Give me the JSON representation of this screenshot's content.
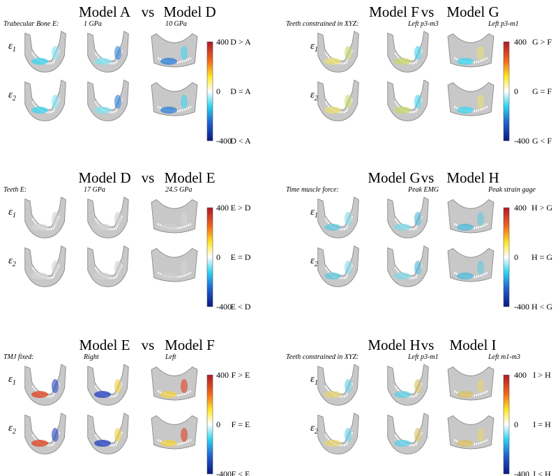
{
  "panels": [
    {
      "left_model": "Model A",
      "vs": "vs",
      "right_model": "Model D",
      "parameter": "Trabecular Bone E:",
      "left_value": "1 GPa",
      "right_value": "10 GPa",
      "rows": [
        {
          "symbol": "ε",
          "sub": "1"
        },
        {
          "symbol": "ε",
          "sub": "2"
        }
      ],
      "ticks": [
        400,
        0,
        -400
      ],
      "labels": [
        "D > A",
        "D = A",
        "D < A"
      ]
    },
    {
      "left_model": "Model F",
      "vs": "vs",
      "right_model": "Model G",
      "parameter": "Teeth constrained in XYZ:",
      "left_value": "Left p3-m3",
      "right_value": "Left p3-m1",
      "rows": [
        {
          "symbol": "ε",
          "sub": "1"
        },
        {
          "symbol": "ε",
          "sub": "2"
        }
      ],
      "ticks": [
        400,
        0,
        -400
      ],
      "labels": [
        "G > F",
        "G = F",
        "G < F"
      ]
    },
    {
      "left_model": "Model D",
      "vs": "vs",
      "right_model": "Model E",
      "parameter": "Teeth E:",
      "left_value": "17 GPa",
      "right_value": "24.5 GPa",
      "rows": [
        {
          "symbol": "ε",
          "sub": "1"
        },
        {
          "symbol": "ε",
          "sub": "2"
        }
      ],
      "ticks": [
        400,
        0,
        -400
      ],
      "labels": [
        "E > D",
        "E = D",
        "E < D"
      ]
    },
    {
      "left_model": "Model G",
      "vs": "vs",
      "right_model": "Model H",
      "parameter": "Time muscle force:",
      "left_value": "Peak EMG",
      "right_value": "Peak strain gage",
      "rows": [
        {
          "symbol": "ε",
          "sub": "1"
        },
        {
          "symbol": "ε",
          "sub": "2"
        }
      ],
      "ticks": [
        400,
        0,
        -400
      ],
      "labels": [
        "H > G",
        "H = G",
        "H < G"
      ]
    },
    {
      "left_model": "Model E",
      "vs": "vs",
      "right_model": "Model F",
      "parameter": "TMJ fixed:",
      "left_value": "Right",
      "right_value": "Left",
      "rows": [
        {
          "symbol": "ε",
          "sub": "1"
        },
        {
          "symbol": "ε",
          "sub": "2"
        }
      ],
      "ticks": [
        400,
        0,
        -400
      ],
      "labels": [
        "F > E",
        "F = E",
        "F < E"
      ]
    },
    {
      "left_model": "Model H",
      "vs": "vs",
      "right_model": "Model I",
      "parameter": "Teeth constrained in XYZ:",
      "left_value": "Left p3-m1",
      "right_value": "Left m1-m3",
      "rows": [
        {
          "symbol": "ε",
          "sub": "1"
        },
        {
          "symbol": "ε",
          "sub": "2"
        }
      ],
      "ticks": [
        400,
        0,
        -400
      ],
      "labels": [
        "I > H",
        "I = H",
        "I < H"
      ]
    }
  ]
}
